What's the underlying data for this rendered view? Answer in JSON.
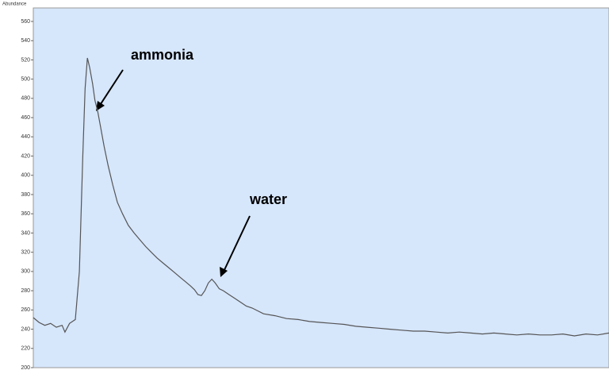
{
  "chart_data": {
    "type": "line",
    "y_label": "Abundance",
    "ylim": [
      200,
      560
    ],
    "yticks": [
      200,
      220,
      240,
      260,
      280,
      300,
      320,
      340,
      360,
      380,
      400,
      420,
      440,
      460,
      480,
      500,
      520,
      540,
      560
    ],
    "xlim": [
      0,
      100
    ],
    "color": "#555555",
    "annotations": [
      "ammonia",
      "water"
    ],
    "x": [
      0,
      1,
      2,
      3,
      4,
      5,
      5.5,
      6.3,
      7.3,
      8,
      8.6,
      9,
      9.4,
      9.8,
      10.3,
      10.7,
      11.2,
      11.7,
      12.3,
      13,
      13.8,
      14.6,
      15.5,
      16.5,
      17.5,
      18.5,
      19.5,
      20.5,
      21.5,
      22.5,
      23.5,
      24.5,
      25.5,
      26.5,
      27.3,
      28,
      28.6,
      29.2,
      29.8,
      30.4,
      31,
      31.6,
      32.3,
      33,
      34,
      35,
      36,
      37,
      38,
      39,
      40,
      42,
      44,
      46,
      48,
      50,
      52,
      54,
      56,
      58,
      60,
      62,
      64,
      66,
      68,
      70,
      72,
      74,
      76,
      78,
      80,
      82,
      84,
      86,
      88,
      90,
      92,
      94,
      96,
      98,
      100
    ],
    "values": [
      252,
      247,
      244,
      246,
      242,
      244,
      237,
      246,
      250,
      300,
      420,
      490,
      522,
      512,
      495,
      478,
      466,
      450,
      430,
      410,
      390,
      372,
      360,
      348,
      340,
      333,
      326,
      320,
      314,
      309,
      304,
      299,
      294,
      289,
      285,
      281,
      276,
      275,
      280,
      288,
      292,
      288,
      282,
      280,
      276,
      272,
      268,
      264,
      262,
      259,
      256,
      254,
      251,
      250,
      248,
      247,
      246,
      245,
      243,
      242,
      241,
      240,
      239,
      238,
      238,
      237,
      236,
      237,
      236,
      235,
      236,
      235,
      234,
      235,
      234,
      234,
      235,
      233,
      235,
      234,
      236
    ]
  }
}
